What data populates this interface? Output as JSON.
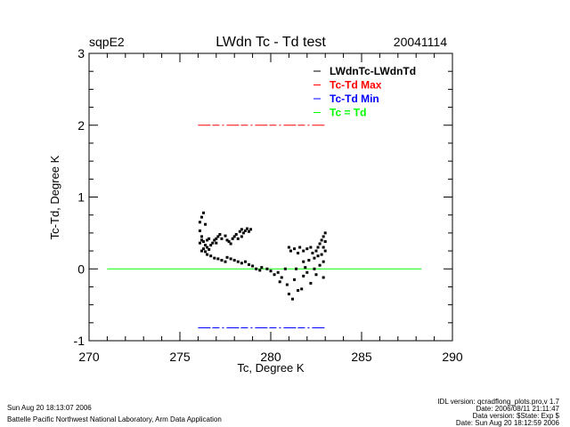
{
  "header": {
    "site": "sqpE2",
    "title": "LWdn Tc - Td test",
    "date": "20041114"
  },
  "footer": {
    "left": [
      "Sun Aug 20 18:13:07 2006",
      "Battelle Pacific Northwest National Laboratory, Arm Data Application"
    ],
    "right": [
      "IDL version: qcradflong_plots.pro,v 1.7",
      "Date: 2006/08/11 21:11:47",
      "Data version: $State: Exp $",
      "Date: Sun Aug 20 18:12:59 2006"
    ]
  },
  "chart_data": {
    "type": "scatter",
    "title": "LWdn Tc - Td test",
    "xlabel": "Tc, Degree K",
    "ylabel": "Tc-Td, Degree K",
    "xlim": [
      270,
      290
    ],
    "ylim": [
      -1,
      3
    ],
    "xticks": [
      "270",
      "275",
      "280",
      "285",
      "290"
    ],
    "yticks": [
      "-1",
      "0",
      "1",
      "2",
      "3"
    ],
    "legend_position": "top-right",
    "legend": [
      {
        "label": "LWdnTc-LWdnTd",
        "color": "#000000"
      },
      {
        "label": "Tc-Td Max",
        "color": "#ff0000"
      },
      {
        "label": "Tc-Td Min",
        "color": "#0000ff"
      },
      {
        "label": "Tc = Td",
        "color": "#00ff00"
      }
    ],
    "max_line": {
      "value": 2.0,
      "x": [
        276,
        283
      ],
      "color": "#ff0000"
    },
    "min_line": {
      "value": -0.82,
      "x": [
        276,
        283
      ],
      "color": "#0000ff"
    },
    "zero_line": {
      "value": 0,
      "x": [
        271,
        288.3
      ],
      "color": "#00ff00"
    },
    "series": [
      {
        "name": "LWdnTc-LWdnTd",
        "color": "#000000",
        "points": [
          [
            276.3,
            0.78
          ],
          [
            276.2,
            0.72
          ],
          [
            276.1,
            0.65
          ],
          [
            276.1,
            0.53
          ],
          [
            276.2,
            0.45
          ],
          [
            276.4,
            0.62
          ],
          [
            276.1,
            0.36
          ],
          [
            276.2,
            0.4
          ],
          [
            276.3,
            0.38
          ],
          [
            276.4,
            0.33
          ],
          [
            276.5,
            0.3
          ],
          [
            276.3,
            0.28
          ],
          [
            276.2,
            0.25
          ],
          [
            276.4,
            0.24
          ],
          [
            276.6,
            0.27
          ],
          [
            276.7,
            0.33
          ],
          [
            276.8,
            0.36
          ],
          [
            276.5,
            0.4
          ],
          [
            276.6,
            0.42
          ],
          [
            276.9,
            0.4
          ],
          [
            277.0,
            0.42
          ],
          [
            277.1,
            0.45
          ],
          [
            277.2,
            0.48
          ],
          [
            277.0,
            0.36
          ],
          [
            277.3,
            0.42
          ],
          [
            277.5,
            0.46
          ],
          [
            277.6,
            0.4
          ],
          [
            277.7,
            0.38
          ],
          [
            277.8,
            0.35
          ],
          [
            277.9,
            0.42
          ],
          [
            278.0,
            0.45
          ],
          [
            278.1,
            0.48
          ],
          [
            278.3,
            0.52
          ],
          [
            278.4,
            0.55
          ],
          [
            278.5,
            0.5
          ],
          [
            278.6,
            0.53
          ],
          [
            278.7,
            0.56
          ],
          [
            278.8,
            0.52
          ],
          [
            278.9,
            0.55
          ],
          [
            278.4,
            0.45
          ],
          [
            278.2,
            0.42
          ],
          [
            276.5,
            0.2
          ],
          [
            276.7,
            0.18
          ],
          [
            276.9,
            0.15
          ],
          [
            277.1,
            0.14
          ],
          [
            277.3,
            0.12
          ],
          [
            277.5,
            0.1
          ],
          [
            277.6,
            0.16
          ],
          [
            277.8,
            0.14
          ],
          [
            278.0,
            0.12
          ],
          [
            278.2,
            0.1
          ],
          [
            278.4,
            0.08
          ],
          [
            278.6,
            0.1
          ],
          [
            278.8,
            0.06
          ],
          [
            279.0,
            0.04
          ],
          [
            279.2,
            0.0
          ],
          [
            279.5,
            0.02
          ],
          [
            279.8,
            0.0
          ],
          [
            279.4,
            -0.02
          ],
          [
            280.0,
            -0.03
          ],
          [
            280.2,
            -0.08
          ],
          [
            280.4,
            -0.05
          ],
          [
            280.5,
            -0.18
          ],
          [
            280.6,
            -0.12
          ],
          [
            280.8,
            0.0
          ],
          [
            280.9,
            -0.22
          ],
          [
            281.0,
            -0.35
          ],
          [
            281.2,
            -0.42
          ],
          [
            281.3,
            -0.15
          ],
          [
            281.5,
            -0.3
          ],
          [
            281.7,
            -0.28
          ],
          [
            281.8,
            -0.1
          ],
          [
            282.0,
            -0.05
          ],
          [
            282.2,
            -0.2
          ],
          [
            282.5,
            -0.08
          ],
          [
            282.9,
            -0.12
          ],
          [
            281.4,
            0.0
          ],
          [
            281.9,
            0.02
          ],
          [
            282.4,
            0.0
          ],
          [
            281.0,
            0.3
          ],
          [
            281.1,
            0.25
          ],
          [
            281.3,
            0.28
          ],
          [
            281.5,
            0.22
          ],
          [
            281.6,
            0.3
          ],
          [
            281.8,
            0.25
          ],
          [
            282.0,
            0.28
          ],
          [
            282.2,
            0.3
          ],
          [
            282.3,
            0.22
          ],
          [
            282.5,
            0.25
          ],
          [
            282.6,
            0.3
          ],
          [
            282.7,
            0.35
          ],
          [
            282.8,
            0.4
          ],
          [
            282.9,
            0.45
          ],
          [
            283.0,
            0.38
          ],
          [
            282.9,
            0.3
          ],
          [
            282.8,
            0.2
          ],
          [
            282.6,
            0.18
          ],
          [
            282.9,
            0.1
          ],
          [
            283.0,
            0.25
          ],
          [
            282.4,
            0.15
          ],
          [
            282.1,
            0.12
          ],
          [
            281.8,
            0.1
          ],
          [
            282.7,
            0.05
          ],
          [
            283.0,
            0.5
          ]
        ]
      }
    ]
  }
}
